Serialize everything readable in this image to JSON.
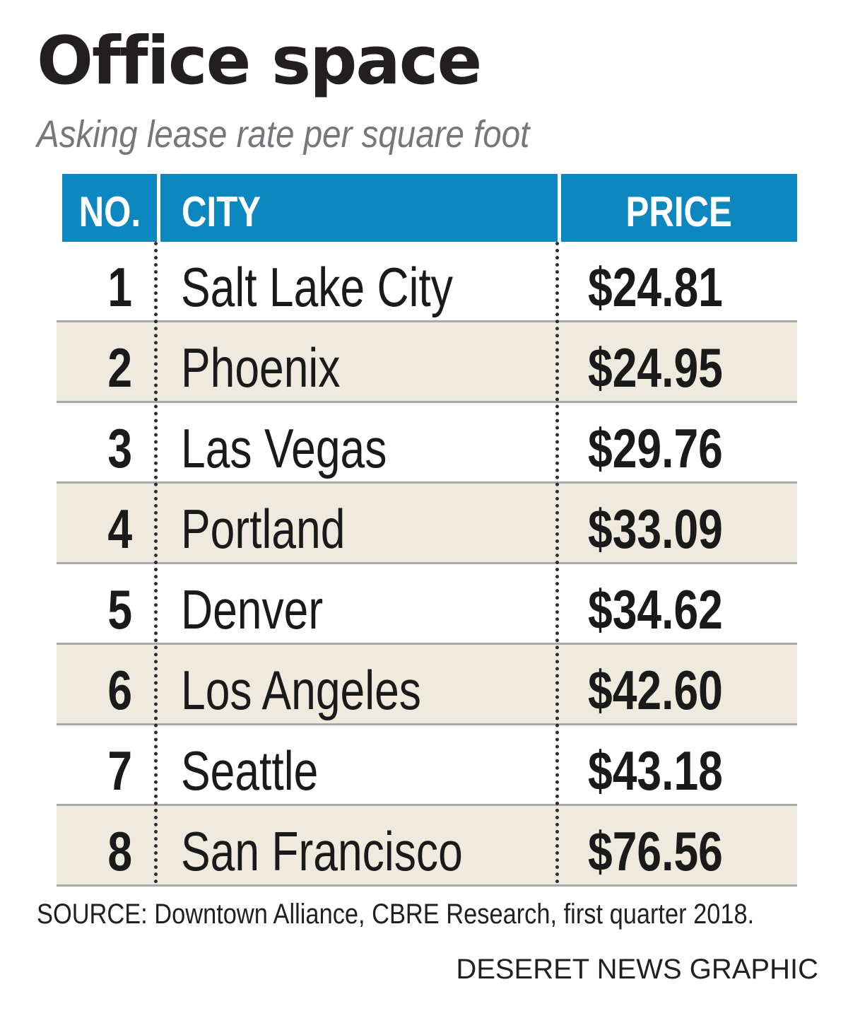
{
  "chart_data": {
    "type": "table",
    "title": "Office space",
    "subtitle": "Asking lease rate per square foot",
    "columns": [
      "NO.",
      "CITY",
      "PRICE"
    ],
    "rows": [
      {
        "no": "1",
        "city": "Salt Lake City",
        "price": "$24.81"
      },
      {
        "no": "2",
        "city": "Phoenix",
        "price": "$24.95"
      },
      {
        "no": "3",
        "city": "Las Vegas",
        "price": "$29.76"
      },
      {
        "no": "4",
        "city": "Portland",
        "price": "$33.09"
      },
      {
        "no": "5",
        "city": "Denver",
        "price": "$34.62"
      },
      {
        "no": "6",
        "city": "Los Angeles",
        "price": "$42.60"
      },
      {
        "no": "7",
        "city": "Seattle",
        "price": "$43.18"
      },
      {
        "no": "8",
        "city": "San Francisco",
        "price": "$76.56"
      }
    ],
    "source": "SOURCE: Downtown Alliance, CBRE Research, first quarter 2018.",
    "credit": "DESERET NEWS GRAPHIC"
  },
  "colors": {
    "header_background": "#0d87bf",
    "header_text": "#ffffff",
    "alternate_row": "#eeebde",
    "row": "#ffffff",
    "row_rule": "#a9a9a9",
    "subtitle": "#77767a"
  }
}
